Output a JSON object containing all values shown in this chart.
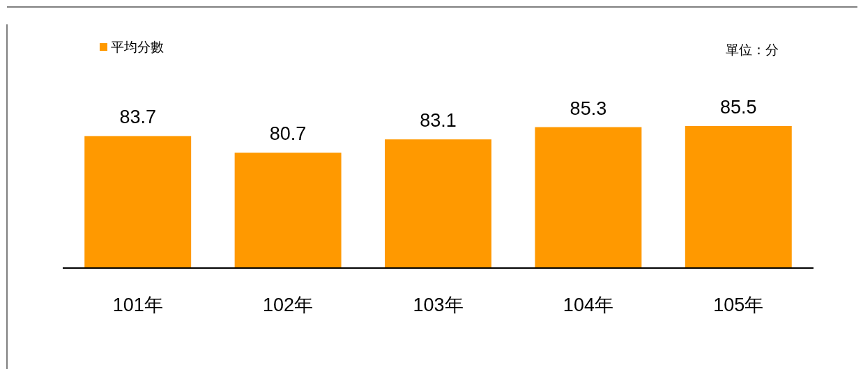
{
  "chart_data": {
    "type": "bar",
    "categories": [
      "101年",
      "102年",
      "103年",
      "104年",
      "105年"
    ],
    "series": [
      {
        "name": "平均分數",
        "color": "#ff9900",
        "values": [
          83.7,
          80.7,
          83.1,
          85.3,
          85.5
        ]
      }
    ],
    "ylim": [
      60,
      100
    ],
    "data_labels": true,
    "legend": "top left",
    "tick_labels": "x",
    "annotations": [
      "單位：分"
    ]
  }
}
